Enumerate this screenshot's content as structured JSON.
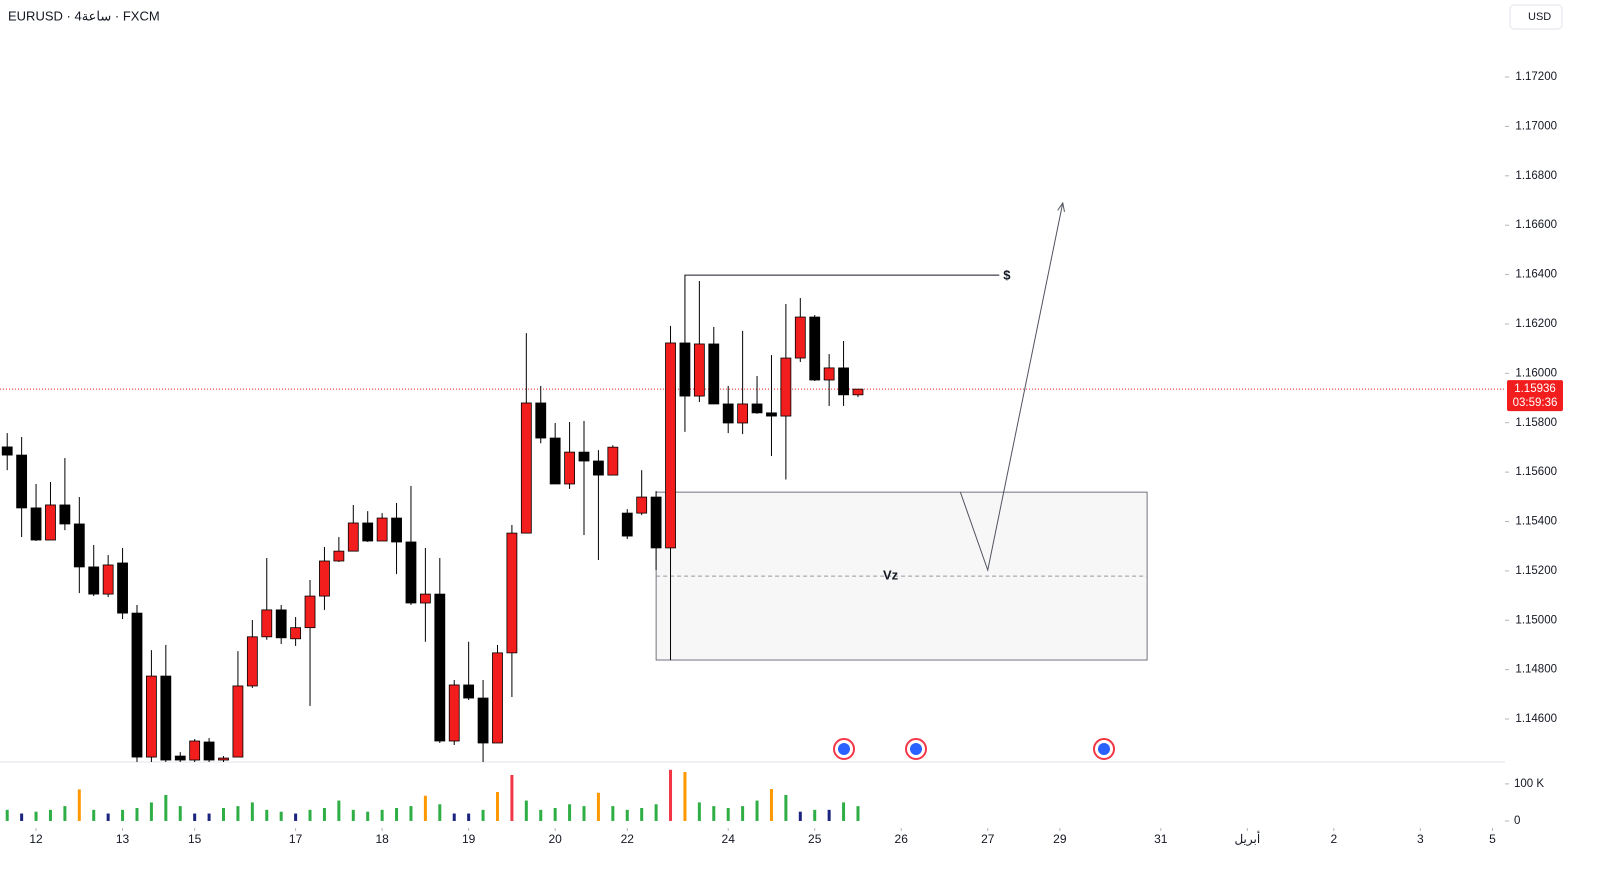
{
  "chart_data": {
    "type": "candlestick",
    "title": "EURUSD · 4ساعة · FXCM",
    "currency": "USD",
    "xlim": [
      -0.5,
      103.87
    ],
    "xticks": [
      {
        "value": 2,
        "label": "12"
      },
      {
        "value": 8,
        "label": "13"
      },
      {
        "value": 13,
        "label": "15"
      },
      {
        "value": 20,
        "label": "17"
      },
      {
        "value": 26,
        "label": "18"
      },
      {
        "value": 32,
        "label": "19"
      },
      {
        "value": 38,
        "label": "20"
      },
      {
        "value": 43,
        "label": "22"
      },
      {
        "value": 50,
        "label": "24"
      },
      {
        "value": 56,
        "label": "25"
      },
      {
        "value": 62,
        "label": "26"
      },
      {
        "value": 68,
        "label": "27"
      },
      {
        "value": 73,
        "label": "29"
      },
      {
        "value": 80,
        "label": "31"
      },
      {
        "value": 86,
        "label": "أبريل"
      },
      {
        "value": 92,
        "label": "2"
      },
      {
        "value": 98,
        "label": "3"
      },
      {
        "value": 103,
        "label": "5"
      }
    ],
    "ylim": [
      1.14426,
      1.17512
    ],
    "yticks": [
      {
        "value": 1.146,
        "label": "1.14600"
      },
      {
        "value": 1.148,
        "label": "1.14800"
      },
      {
        "value": 1.15,
        "label": "1.15000"
      },
      {
        "value": 1.152,
        "label": "1.15200"
      },
      {
        "value": 1.154,
        "label": "1.15400"
      },
      {
        "value": 1.156,
        "label": "1.15600"
      },
      {
        "value": 1.158,
        "label": "1.15800"
      },
      {
        "value": 1.16,
        "label": "1.16000"
      },
      {
        "value": 1.162,
        "label": "1.16200"
      },
      {
        "value": 1.164,
        "label": "1.16400"
      },
      {
        "value": 1.166,
        "label": "1.16600"
      },
      {
        "value": 1.168,
        "label": "1.16800"
      },
      {
        "value": 1.17,
        "label": "1.17000"
      },
      {
        "value": 1.172,
        "label": "1.17200"
      }
    ],
    "up_color": "#f21d1d",
    "down_color": "#000000",
    "open": [
      1.15702,
      1.15669,
      1.15455,
      1.15325,
      1.15467,
      1.1539,
      1.15216,
      1.15106,
      1.15232,
      1.15029,
      1.14446,
      1.14774,
      1.1445,
      1.14434,
      1.14507,
      1.14434,
      1.14446,
      1.14734,
      1.14933,
      1.15042,
      1.14925,
      1.1497,
      1.15098,
      1.1524,
      1.1528,
      1.15394,
      1.15321,
      1.15414,
      1.15317,
      1.1507,
      1.15106,
      1.14511,
      1.14738,
      1.14685,
      1.14503,
      1.14868,
      1.15353,
      1.1588,
      1.15738,
      1.15552,
      1.15681,
      1.15645,
      1.15588,
      1.15434,
      1.15434,
      1.15499,
      1.15293,
      1.16123,
      1.15908,
      1.16119,
      1.15876,
      1.15799,
      1.15876,
      1.1584,
      1.15827,
      1.16062,
      1.16228,
      1.15973,
      1.16022,
      1.15913
    ],
    "high": [
      1.15758,
      1.15742,
      1.15552,
      1.1556,
      1.15657,
      1.15499,
      1.15305,
      1.15264,
      1.15293,
      1.15062,
      1.14879,
      1.149,
      1.14466,
      1.14519,
      1.14523,
      1.1445,
      1.14875,
      1.15001,
      1.15252,
      1.15062,
      1.15013,
      1.15163,
      1.15297,
      1.15337,
      1.15467,
      1.15442,
      1.15434,
      1.15475,
      1.15544,
      1.15293,
      1.15252,
      1.14758,
      1.14913,
      1.14758,
      1.149,
      1.15386,
      1.16163,
      1.15949,
      1.15799,
      1.15803,
      1.15807,
      1.15689,
      1.15709,
      1.1545,
      1.15608,
      1.15523,
      1.16192,
      1.16398,
      1.16374,
      1.16188,
      1.15949,
      1.16172,
      1.15989,
      1.16074,
      1.16281,
      1.16305,
      1.16236,
      1.16078,
      1.16131,
      1.15937
    ],
    "low": [
      1.15608,
      1.15337,
      1.15321,
      1.15325,
      1.15365,
      1.1511,
      1.15098,
      1.15094,
      1.15005,
      1.14426,
      1.14426,
      1.14426,
      1.14426,
      1.14426,
      1.14426,
      1.14426,
      1.14446,
      1.14726,
      1.14921,
      1.14904,
      1.14896,
      1.14653,
      1.15042,
      1.15236,
      1.1528,
      1.15317,
      1.15321,
      1.15187,
      1.15062,
      1.14913,
      1.14503,
      1.14495,
      1.14677,
      1.14426,
      1.14503,
      1.14689,
      1.15353,
      1.15717,
      1.15552,
      1.15532,
      1.15345,
      1.15244,
      1.15588,
      1.15329,
      1.15426,
      1.15204,
      1.14839,
      1.15763,
      1.15884,
      1.15876,
      1.15758,
      1.15754,
      1.15836,
      1.15665,
      1.1557,
      1.16046,
      1.15969,
      1.15868,
      1.15868,
      1.15904
    ],
    "close": [
      1.15669,
      1.15455,
      1.15325,
      1.15467,
      1.1539,
      1.15216,
      1.15106,
      1.15224,
      1.15029,
      1.14446,
      1.14774,
      1.14434,
      1.14434,
      1.14511,
      1.14434,
      1.14442,
      1.14734,
      1.14933,
      1.15042,
      1.14929,
      1.1497,
      1.15098,
      1.1524,
      1.1528,
      1.15394,
      1.15321,
      1.15414,
      1.15317,
      1.1507,
      1.15106,
      1.14511,
      1.14738,
      1.14685,
      1.14503,
      1.14868,
      1.15353,
      1.1588,
      1.15738,
      1.15552,
      1.15681,
      1.15645,
      1.15588,
      1.15701,
      1.15341,
      1.15499,
      1.15293,
      1.16123,
      1.15908,
      1.16119,
      1.15876,
      1.15799,
      1.15876,
      1.1584,
      1.15827,
      1.16062,
      1.16228,
      1.15973,
      1.16022,
      1.15913,
      1.15936
    ],
    "last_price": 1.15936,
    "last_price_color": "#f21d1d",
    "countdown": "03:59:36",
    "volume": [
      30000,
      20000,
      25000,
      30000,
      40000,
      85000,
      30000,
      20000,
      30000,
      35000,
      50000,
      70000,
      40000,
      20000,
      20000,
      35000,
      40000,
      50000,
      30000,
      25000,
      20000,
      30000,
      35000,
      55000,
      30000,
      25000,
      30000,
      35000,
      40000,
      68000,
      45000,
      20000,
      20000,
      30000,
      78000,
      124000,
      55000,
      30000,
      35000,
      45000,
      40000,
      76000,
      40000,
      30000,
      35000,
      45000,
      138000,
      132000,
      50000,
      40000,
      35000,
      40000,
      55000,
      86000,
      70000,
      25000,
      30000,
      30000,
      50000,
      40000
    ],
    "volume_colors": [
      "#2fae45",
      "#1a237e",
      "#2fae45",
      "#2fae45",
      "#2fae45",
      "#ff9800",
      "#2fae45",
      "#1a237e",
      "#2fae45",
      "#2fae45",
      "#2fae45",
      "#2fae45",
      "#2fae45",
      "#1a237e",
      "#1a237e",
      "#2fae45",
      "#2fae45",
      "#2fae45",
      "#2fae45",
      "#2fae45",
      "#1a237e",
      "#2fae45",
      "#2fae45",
      "#2fae45",
      "#2fae45",
      "#2fae45",
      "#2fae45",
      "#2fae45",
      "#2fae45",
      "#ff9800",
      "#2fae45",
      "#1a237e",
      "#1a237e",
      "#2fae45",
      "#ff9800",
      "#f23645",
      "#2fae45",
      "#2fae45",
      "#2fae45",
      "#2fae45",
      "#2fae45",
      "#ff9800",
      "#2fae45",
      "#2fae45",
      "#2fae45",
      "#2fae45",
      "#f23645",
      "#ff9800",
      "#2fae45",
      "#2fae45",
      "#2fae45",
      "#2fae45",
      "#2fae45",
      "#ff9800",
      "#2fae45",
      "#1a237e",
      "#2fae45",
      "#1a237e",
      "#2fae45",
      "#2fae45"
    ],
    "volume_ylim": [
      -19000,
      159000
    ],
    "volume_yticks": [
      0,
      {
        "value": 100000,
        "label": "100 K"
      }
    ],
    "annotations": {
      "level": {
        "label": "$",
        "price": 1.16398,
        "from": 47,
        "to": 68.8
      },
      "zone": {
        "label": "Vz",
        "top": 1.15519,
        "bottom": 1.14839,
        "mid": 1.15179,
        "from": 45,
        "to": 79.05
      },
      "arrow": {
        "x": [
          66.1,
          68,
          73.2
        ],
        "y": [
          1.15519,
          1.15203,
          1.1669
        ]
      }
    }
  }
}
